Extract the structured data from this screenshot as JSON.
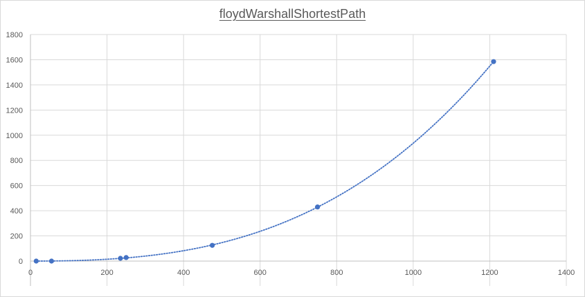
{
  "chart_data": {
    "type": "scatter",
    "title": "floydWarshallShortestPath",
    "xlabel": "",
    "ylabel": "",
    "xlim": [
      0,
      1400
    ],
    "ylim": [
      0,
      1800
    ],
    "x_ticks": [
      0,
      200,
      400,
      600,
      800,
      1000,
      1200,
      1400
    ],
    "y_ticks": [
      0,
      200,
      400,
      600,
      800,
      1000,
      1200,
      1400,
      1600,
      1800
    ],
    "grid": true,
    "legend": "none",
    "trendline": {
      "type": "polynomial-dotted",
      "color": "#4472c4"
    },
    "series": [
      {
        "color": "#4472c4",
        "x": [
          15,
          55,
          235,
          250,
          475,
          750,
          1210
        ],
        "y": [
          0,
          0,
          22,
          28,
          125,
          430,
          1585
        ]
      }
    ]
  }
}
